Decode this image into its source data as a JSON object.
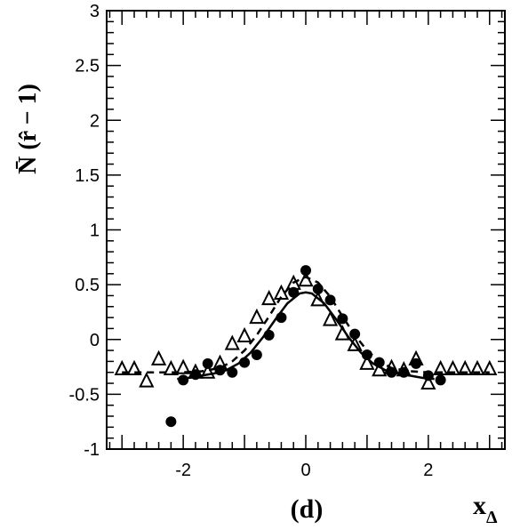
{
  "chart_data": {
    "type": "scatter",
    "panel_label": "(d)",
    "xlabel_main": "x",
    "xlabel_sub": "Δ",
    "ylabel": "N̄ (r̂ − 1)",
    "xlim": [
      -3.25,
      3.25
    ],
    "ylim": [
      -1,
      3
    ],
    "x_ticks": [
      -2,
      0,
      2
    ],
    "x_tick_labels": [
      "-2",
      "0",
      "2"
    ],
    "y_ticks": [
      -1,
      -0.5,
      0,
      0.5,
      1,
      1.5,
      2,
      2.5,
      3
    ],
    "y_tick_labels": [
      "-1",
      "-0.5",
      "0",
      "0.5",
      "1",
      "1.5",
      "2",
      "2.5",
      "3"
    ],
    "grid": false,
    "series": [
      {
        "marker": "circle-filled",
        "x": [
          -2.2,
          -2.0,
          -1.8,
          -1.6,
          -1.4,
          -1.2,
          -1.0,
          -0.8,
          -0.6,
          -0.4,
          -0.2,
          0.0,
          0.2,
          0.4,
          0.6,
          0.8,
          1.0,
          1.2,
          1.4,
          1.6,
          1.8,
          2.0,
          2.2
        ],
        "y": [
          -0.75,
          -0.37,
          -0.32,
          -0.22,
          -0.28,
          -0.3,
          -0.21,
          -0.14,
          0.04,
          0.2,
          0.43,
          0.63,
          0.46,
          0.36,
          0.19,
          0.05,
          -0.14,
          -0.21,
          -0.3,
          -0.3,
          -0.22,
          -0.33,
          -0.37
        ]
      },
      {
        "marker": "triangle-open",
        "x": [
          -3.0,
          -2.8,
          -2.6,
          -2.4,
          -2.2,
          -2.0,
          -1.8,
          -1.6,
          -1.4,
          -1.2,
          -1.0,
          -0.8,
          -0.6,
          -0.4,
          -0.2,
          0.0,
          0.2,
          0.4,
          0.6,
          0.8,
          1.0,
          1.2,
          1.4,
          1.6,
          1.8,
          2.0,
          2.2,
          2.4,
          2.6,
          2.8,
          3.0
        ],
        "y": [
          -0.27,
          -0.27,
          -0.38,
          -0.18,
          -0.27,
          -0.26,
          -0.3,
          -0.3,
          -0.22,
          -0.04,
          0.03,
          0.2,
          0.37,
          0.42,
          0.51,
          0.54,
          0.36,
          0.18,
          0.05,
          -0.05,
          -0.22,
          -0.28,
          -0.26,
          -0.28,
          -0.18,
          -0.4,
          -0.27,
          -0.27,
          -0.27,
          -0.27,
          -0.27
        ]
      }
    ],
    "curves": [
      {
        "style": "solid",
        "x": [
          -2.1,
          -1.9,
          -1.7,
          -1.5,
          -1.3,
          -1.1,
          -0.9,
          -0.7,
          -0.5,
          -0.3,
          -0.1,
          0.0,
          0.1,
          0.3,
          0.5,
          0.7,
          0.9,
          1.1,
          1.3,
          1.5,
          1.7,
          1.9,
          2.1
        ],
        "y": [
          -0.36,
          -0.35,
          -0.33,
          -0.31,
          -0.28,
          -0.22,
          -0.12,
          0.02,
          0.18,
          0.33,
          0.42,
          0.43,
          0.42,
          0.33,
          0.18,
          0.02,
          -0.12,
          -0.22,
          -0.28,
          -0.31,
          -0.33,
          -0.35,
          -0.36
        ]
      },
      {
        "style": "dashed",
        "x": [
          -3.0,
          -2.5,
          -2.0,
          -1.7,
          -1.4,
          -1.2,
          -1.0,
          -0.8,
          -0.6,
          -0.4,
          -0.2,
          0.0,
          0.2,
          0.4,
          0.6,
          0.8,
          1.0,
          1.2,
          1.4,
          1.7,
          2.0,
          2.5,
          3.0
        ],
        "y": [
          -0.3,
          -0.3,
          -0.3,
          -0.29,
          -0.26,
          -0.2,
          -0.1,
          0.04,
          0.21,
          0.39,
          0.52,
          0.57,
          0.52,
          0.39,
          0.21,
          0.04,
          -0.1,
          -0.2,
          -0.26,
          -0.29,
          -0.3,
          -0.3,
          -0.3
        ]
      }
    ]
  }
}
